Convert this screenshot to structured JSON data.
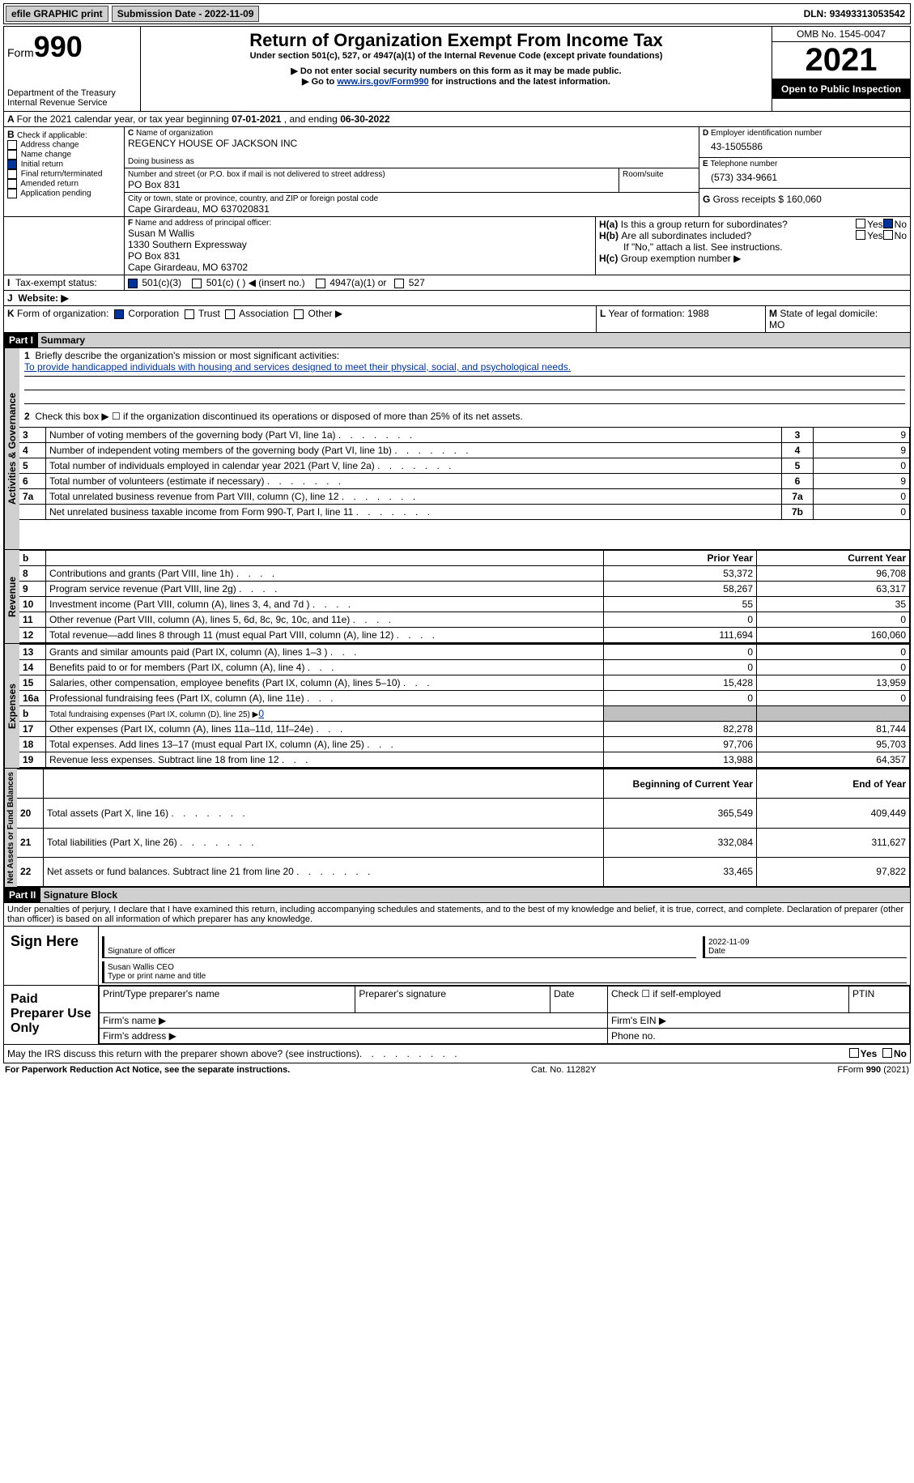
{
  "top": {
    "efile": "efile GRAPHIC print",
    "subdate_label": "Submission Date - ",
    "subdate": "2022-11-09",
    "dln_label": "DLN: ",
    "dln": "93493313053542"
  },
  "hdr": {
    "form_prefix": "Form",
    "form_num": "990",
    "dept": "Department of the Treasury\nInternal Revenue Service",
    "title": "Return of Organization Exempt From Income Tax",
    "sub1": "Under section 501(c), 527, or 4947(a)(1) of the Internal Revenue Code (except private foundations)",
    "sub2": "▶ Do not enter social security numbers on this form as it may be made public.",
    "sub3_pre": "▶ Go to ",
    "sub3_link": "www.irs.gov/Form990",
    "sub3_post": " for instructions and the latest information.",
    "omb": "OMB No. 1545-0047",
    "year": "2021",
    "otp": "Open to Public Inspection"
  },
  "A": {
    "text": "For the 2021 calendar year, or tax year beginning ",
    "begin": "07-01-2021",
    "mid": " , and ending ",
    "end": "06-30-2022"
  },
  "B": {
    "label": "Check if applicable:",
    "items": [
      "Address change",
      "Name change",
      "Initial return",
      "Final return/terminated",
      "Amended return",
      "Application pending"
    ],
    "checked": [
      false,
      false,
      true,
      false,
      false,
      false
    ]
  },
  "C": {
    "name_label": "Name of organization",
    "name": "REGENCY HOUSE OF JACKSON INC",
    "dba_label": "Doing business as",
    "dba": "",
    "addr_label": "Number and street (or P.O. box if mail is not delivered to street address)",
    "room_label": "Room/suite",
    "addr": "PO Box 831",
    "city_label": "City or town, state or province, country, and ZIP or foreign postal code",
    "city": "Cape Girardeau, MO  637020831"
  },
  "D": {
    "label": "Employer identification number",
    "val": "43-1505586"
  },
  "E": {
    "label": "Telephone number",
    "val": "(573) 334-9661"
  },
  "G": {
    "label": "Gross receipts $ ",
    "val": "160,060"
  },
  "F": {
    "label": "Name and address of principal officer:",
    "lines": [
      "Susan M Wallis",
      "1330 Southern Expressway",
      "PO Box 831",
      "Cape Girardeau, MO  63702"
    ]
  },
  "H": {
    "a": "Is this a group return for subordinates?",
    "a_yes": false,
    "a_no": true,
    "b": "Are all subordinates included?",
    "b_yes": false,
    "b_no": false,
    "b_note": "If \"No,\" attach a list. See instructions.",
    "c": "Group exemption number ▶"
  },
  "I": {
    "label": "Tax-exempt status:",
    "c3": "501(c)(3)",
    "c": "501(c) (  ) ◀ (insert no.)",
    "a1": "4947(a)(1) or",
    "s527": "527",
    "checked_c3": true
  },
  "J": {
    "label": "Website: ▶",
    "val": ""
  },
  "K": {
    "label": "Form of organization:",
    "corp": "Corporation",
    "trust": "Trust",
    "assoc": "Association",
    "other": "Other ▶",
    "checked_corp": true
  },
  "L": {
    "label": "Year of formation: ",
    "val": "1988"
  },
  "M": {
    "label": "State of legal domicile:",
    "val": "MO"
  },
  "p1": {
    "label": "Part I",
    "title": "Summary"
  },
  "s1": {
    "q1": "Briefly describe the organization's mission or most significant activities:",
    "mission": "To provide handicapped individuals with housing and services designed to meet their physical, social, and psychological needs.",
    "q2": "Check this box ▶ ☐ if the organization discontinued its operations or disposed of more than 25% of its net assets.",
    "rows": [
      {
        "n": "3",
        "t": "Number of voting members of the governing body (Part VI, line 1a)",
        "k": "3",
        "v": "9"
      },
      {
        "n": "4",
        "t": "Number of independent voting members of the governing body (Part VI, line 1b)",
        "k": "4",
        "v": "9"
      },
      {
        "n": "5",
        "t": "Total number of individuals employed in calendar year 2021 (Part V, line 2a)",
        "k": "5",
        "v": "0"
      },
      {
        "n": "6",
        "t": "Total number of volunteers (estimate if necessary)",
        "k": "6",
        "v": "9"
      },
      {
        "n": "7a",
        "t": "Total unrelated business revenue from Part VIII, column (C), line 12",
        "k": "7a",
        "v": "0"
      },
      {
        "n": "",
        "t": "Net unrelated business taxable income from Form 990-T, Part I, line 11",
        "k": "7b",
        "v": "0"
      }
    ]
  },
  "py": "Prior Year",
  "cy": "Current Year",
  "rev": {
    "label": "Revenue",
    "rows": [
      {
        "n": "8",
        "t": "Contributions and grants (Part VIII, line 1h)",
        "p": "53,372",
        "c": "96,708"
      },
      {
        "n": "9",
        "t": "Program service revenue (Part VIII, line 2g)",
        "p": "58,267",
        "c": "63,317"
      },
      {
        "n": "10",
        "t": "Investment income (Part VIII, column (A), lines 3, 4, and 7d )",
        "p": "55",
        "c": "35"
      },
      {
        "n": "11",
        "t": "Other revenue (Part VIII, column (A), lines 5, 6d, 8c, 9c, 10c, and 11e)",
        "p": "0",
        "c": "0"
      },
      {
        "n": "12",
        "t": "Total revenue—add lines 8 through 11 (must equal Part VIII, column (A), line 12)",
        "p": "111,694",
        "c": "160,060"
      }
    ]
  },
  "exp": {
    "label": "Expenses",
    "rows": [
      {
        "n": "13",
        "t": "Grants and similar amounts paid (Part IX, column (A), lines 1–3 )",
        "p": "0",
        "c": "0"
      },
      {
        "n": "14",
        "t": "Benefits paid to or for members (Part IX, column (A), line 4)",
        "p": "0",
        "c": "0"
      },
      {
        "n": "15",
        "t": "Salaries, other compensation, employee benefits (Part IX, column (A), lines 5–10)",
        "p": "15,428",
        "c": "13,959"
      },
      {
        "n": "16a",
        "t": "Professional fundraising fees (Part IX, column (A), line 11e)",
        "p": "0",
        "c": "0"
      },
      {
        "n": "b",
        "t": "Total fundraising expenses (Part IX, column (D), line 25) ▶",
        "v": "0",
        "gray": true
      },
      {
        "n": "17",
        "t": "Other expenses (Part IX, column (A), lines 11a–11d, 11f–24e)",
        "p": "82,278",
        "c": "81,744"
      },
      {
        "n": "18",
        "t": "Total expenses. Add lines 13–17 (must equal Part IX, column (A), line 25)",
        "p": "97,706",
        "c": "95,703"
      },
      {
        "n": "19",
        "t": "Revenue less expenses. Subtract line 18 from line 12",
        "p": "13,988",
        "c": "64,357"
      }
    ]
  },
  "na": {
    "label": "Net Assets or Fund Balances",
    "bcy": "Beginning of Current Year",
    "eoy": "End of Year",
    "rows": [
      {
        "n": "20",
        "t": "Total assets (Part X, line 16)",
        "p": "365,549",
        "c": "409,449"
      },
      {
        "n": "21",
        "t": "Total liabilities (Part X, line 26)",
        "p": "332,084",
        "c": "311,627"
      },
      {
        "n": "22",
        "t": "Net assets or fund balances. Subtract line 21 from line 20",
        "p": "33,465",
        "c": "97,822"
      }
    ]
  },
  "p2": {
    "label": "Part II",
    "title": "Signature Block",
    "decl": "Under penalties of perjury, I declare that I have examined this return, including accompanying schedules and statements, and to the best of my knowledge and belief, it is true, correct, and complete. Declaration of preparer (other than officer) is based on all information of which preparer has any knowledge."
  },
  "sign": {
    "here": "Sign Here",
    "date": "2022-11-09",
    "sigoff": "Signature of officer",
    "dlbl": "Date",
    "name": "Susan Wallis  CEO",
    "typelbl": "Type or print name and title"
  },
  "paid": {
    "label": "Paid Preparer Use Only",
    "h": [
      "Print/Type preparer's name",
      "Preparer's signature",
      "Date",
      "Check ☐ if self-employed",
      "PTIN"
    ],
    "firm": "Firm's name  ▶",
    "ein": "Firm's EIN ▶",
    "addr": "Firm's address ▶",
    "phone": "Phone no."
  },
  "discuss": {
    "t": "May the IRS discuss this return with the preparer shown above? (see instructions)",
    "yes": "Yes",
    "no": "No"
  },
  "foot": {
    "l": "For Paperwork Reduction Act Notice, see the separate instructions.",
    "m": "Cat. No. 11282Y",
    "r": "Form 990 (2021)"
  }
}
